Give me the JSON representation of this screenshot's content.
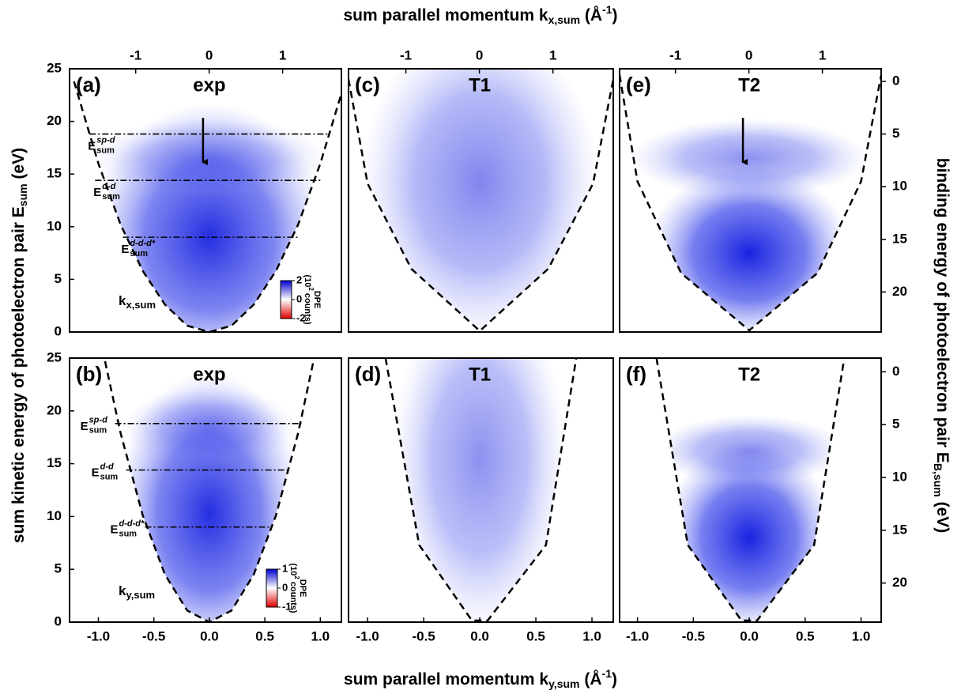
{
  "figure": {
    "top_xlabel": {
      "text": "sum parallel momentum k",
      "sub": "x,sum",
      "unit": "(Å",
      "sup": "-1",
      "end": ")"
    },
    "bottom_xlabel": {
      "text": "sum parallel momentum k",
      "sub": "y,sum",
      "unit": "(Å",
      "sup": "-1",
      "end": ")"
    },
    "left_ylabel": {
      "text": "sum kinetic energy of photoelectron pair E",
      "sub": "sum",
      "unit": "(eV)"
    },
    "right_ylabel": {
      "text": "binding energy of photoelectron pair E",
      "sub": "B,sum",
      "unit": "(eV)"
    }
  },
  "chart_data": [
    {
      "type": "heatmap",
      "label": "(a)",
      "title": "exp",
      "xlim": [
        -1.26,
        1.19
      ],
      "ylim": [
        0,
        25
      ],
      "yticks": [
        0,
        5,
        10,
        15,
        20,
        25
      ],
      "x2lim": [
        -1.9,
        1.8
      ],
      "x2ticks": [
        -1,
        0,
        1
      ],
      "boundary": {
        "x": [
          -1.22,
          -1.0,
          -0.8,
          -0.6,
          -0.4,
          -0.2,
          0,
          0.2,
          0.4,
          0.6,
          0.8,
          1.0,
          1.2
        ],
        "y": [
          23.8,
          16,
          10.2,
          5.8,
          2.6,
          0.6,
          0,
          0.6,
          2.6,
          5.8,
          10.2,
          16,
          23
        ]
      },
      "lines": [
        {
          "y": 18.8,
          "x": [
            -1.08,
            1.07
          ],
          "label": "E",
          "sub": "sum",
          "sup": "sp-d"
        },
        {
          "y": 14.4,
          "x": [
            -1.03,
            1.01
          ],
          "label": "E",
          "sub": "sum",
          "sup": "d-d"
        },
        {
          "y": 9.0,
          "x": [
            -0.78,
            0.8
          ],
          "label": "E",
          "sub": "sum",
          "sup": "d-d-d*"
        }
      ],
      "axis_note": {
        "text": "k",
        "sub": "x,sum"
      },
      "colorbar": {
        "label": "DPE",
        "unit": "(10",
        "sup": "2",
        "unit_end": " counts)",
        "lim": [
          -2,
          2
        ],
        "ticks": [
          2,
          0,
          -2
        ]
      }
    },
    {
      "type": "heatmap",
      "label": "(c)",
      "title": "T1",
      "xlim": [
        -1.17,
        1.19
      ],
      "ylim": [
        0,
        25
      ],
      "x2lim": [
        -1.78,
        1.82
      ],
      "x2ticks": [
        -1,
        0,
        1
      ],
      "boundary": {
        "x": [
          -1.17,
          -1.0,
          -0.61,
          0,
          0.61,
          1.01,
          1.19
        ],
        "y": [
          24.0,
          14.1,
          6.0,
          0.1,
          6.0,
          14.1,
          24.0
        ]
      }
    },
    {
      "type": "heatmap",
      "label": "(e)",
      "title": "T2",
      "xlim": [
        -1.16,
        1.18
      ],
      "ylim": [
        0,
        25
      ],
      "x2lim": [
        -1.76,
        1.8
      ],
      "x2ticks": [
        -1,
        0,
        1
      ],
      "y2lim": [
        23.8,
        -1.2
      ],
      "y2ticks": [
        0,
        5,
        10,
        15,
        20
      ],
      "boundary": {
        "x": [
          -1.16,
          -1.0,
          -0.61,
          0,
          0.61,
          1.0,
          1.18
        ],
        "y": [
          24.4,
          14.3,
          5.6,
          0.15,
          5.6,
          14.3,
          24.4
        ]
      }
    },
    {
      "type": "heatmap",
      "label": "(b)",
      "title": "exp",
      "xlim": [
        -1.26,
        1.19
      ],
      "ylim": [
        0,
        25
      ],
      "yticks": [
        0,
        5,
        10,
        15,
        20,
        25
      ],
      "xticks": [
        {
          "value": -1,
          "label": "-1.0"
        },
        -0.5,
        {
          "value": 0,
          "label": "0.0"
        },
        0.5,
        {
          "value": 1,
          "label": "1.0"
        }
      ],
      "boundary": {
        "x": [
          -0.94,
          -0.8,
          -0.6,
          -0.4,
          -0.2,
          0,
          0.2,
          0.4,
          0.6,
          0.8,
          0.95
        ],
        "y": [
          24.7,
          17.9,
          10.1,
          4.5,
          1.1,
          0,
          1.1,
          4.5,
          10.1,
          17.9,
          25.3
        ]
      },
      "lines": [
        {
          "y": 18.8,
          "x": [
            -0.85,
            0.83
          ],
          "label": "E",
          "sub": "sum",
          "sup": "sp-d"
        },
        {
          "y": 14.4,
          "x": [
            -0.75,
            0.71
          ],
          "label": "E",
          "sub": "sum",
          "sup": "d-d"
        },
        {
          "y": 9.0,
          "x": [
            -0.58,
            0.57
          ],
          "label": "E",
          "sub": "sum",
          "sup": "d-d-d*"
        }
      ],
      "axis_note": {
        "text": "k",
        "sub": "y,sum"
      },
      "colorbar": {
        "label": "DPE",
        "unit": "(10",
        "sup": "2",
        "unit_end": " counts)",
        "lim": [
          -1,
          1
        ],
        "ticks": [
          1,
          0,
          -1
        ]
      }
    },
    {
      "type": "heatmap",
      "label": "(d)",
      "title": "T1",
      "xlim": [
        -1.17,
        1.19
      ],
      "ylim": [
        0,
        25
      ],
      "xticks": [
        {
          "value": -1,
          "label": "-1.0"
        },
        -0.5,
        {
          "value": 0,
          "label": "0.0"
        },
        0.5,
        {
          "value": 1,
          "label": "1.0"
        }
      ],
      "boundary": {
        "x": [
          -0.84,
          -0.54,
          -0.07,
          0.07,
          0.59,
          0.86
        ],
        "y": [
          25,
          7.3,
          0.15,
          0.15,
          7.3,
          25
        ]
      }
    },
    {
      "type": "heatmap",
      "label": "(f)",
      "title": "T2",
      "xlim": [
        -1.16,
        1.18
      ],
      "ylim": [
        0,
        25
      ],
      "xticks": [
        {
          "value": -1,
          "label": "-1.0"
        },
        -0.5,
        {
          "value": 0,
          "label": "0.0"
        },
        0.5,
        {
          "value": 1,
          "label": "1.0"
        }
      ],
      "y2lim": [
        23.7,
        -1.3
      ],
      "y2ticks": [
        0,
        5,
        10,
        15,
        20
      ],
      "boundary": {
        "x": [
          -0.83,
          -0.55,
          -0.07,
          0.07,
          0.58,
          0.85
        ],
        "y": [
          25,
          7.3,
          0.15,
          0.15,
          7.3,
          25
        ]
      }
    }
  ]
}
